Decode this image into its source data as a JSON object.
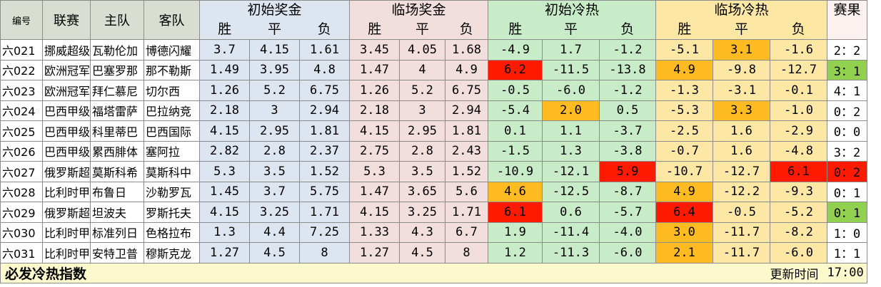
{
  "headers": {
    "id": "编号",
    "league": "联赛",
    "home": "主队",
    "away": "客队",
    "init_prize": "初始奖金",
    "live_prize": "临场奖金",
    "init_heat": "初始冷热",
    "live_heat": "临场冷热",
    "result": "赛果",
    "win": "胜",
    "draw": "平",
    "lose": "负"
  },
  "colors": {
    "blue_bg": "#dde6f0",
    "pink_bg": "#f3dede",
    "green_bg": "#c7ecc7",
    "yellow_bg": "#fde7a4",
    "red_highlight": "#ff1a00",
    "orange_highlight": "#ffbb22",
    "green_highlight": "#92d050",
    "footer_bg": "#fcfacd"
  },
  "rows": [
    {
      "id": "六021",
      "league": "挪威超级",
      "home": "瓦勒伦加",
      "away": "博德闪耀",
      "init": [
        "3.7",
        "4.15",
        "1.61"
      ],
      "live": [
        "3.45",
        "4.05",
        "1.68"
      ],
      "ih": [
        "-4.9",
        "1.7",
        "-1.2"
      ],
      "lh": [
        "-5.1",
        "3.1",
        "-1.6"
      ],
      "result": "2：2"
    },
    {
      "id": "六022",
      "league": "欧洲冠军",
      "home": "巴塞罗那",
      "away": "那不勒斯",
      "init": [
        "1.49",
        "3.95",
        "4.8"
      ],
      "live": [
        "1.47",
        "4",
        "4.9"
      ],
      "ih": [
        "6.2",
        "-11.5",
        "-13.8"
      ],
      "lh": [
        "4.9",
        "-9.8",
        "-12.7"
      ],
      "result": "3：1"
    },
    {
      "id": "六023",
      "league": "欧洲冠军",
      "home": "拜仁慕尼",
      "away": "切尔西",
      "init": [
        "1.26",
        "5.2",
        "6.75"
      ],
      "live": [
        "1.26",
        "5.2",
        "6.75"
      ],
      "ih": [
        "-0.5",
        "-6.0",
        "-1.2"
      ],
      "lh": [
        "-1.3",
        "-3.1",
        "-0.1"
      ],
      "result": "4：1"
    },
    {
      "id": "六024",
      "league": "巴西甲级",
      "home": "福塔雷萨",
      "away": "巴拉纳竞",
      "init": [
        "2.18",
        "3",
        "2.94"
      ],
      "live": [
        "2.18",
        "3",
        "2.94"
      ],
      "ih": [
        "-5.4",
        "2.0",
        "0.5"
      ],
      "lh": [
        "-5.3",
        "3.3",
        "-1.0"
      ],
      "result": "0：2"
    },
    {
      "id": "六025",
      "league": "巴西甲级",
      "home": "科里蒂巴",
      "away": "巴西国际",
      "init": [
        "4.15",
        "2.95",
        "1.81"
      ],
      "live": [
        "4.15",
        "2.95",
        "1.81"
      ],
      "ih": [
        "0.1",
        "1.1",
        "-3.7"
      ],
      "lh": [
        "-2.5",
        "1.6",
        "-2.9"
      ],
      "result": "0：0"
    },
    {
      "id": "六026",
      "league": "巴西甲级",
      "home": "累西腓体",
      "away": "塞阿拉",
      "init": [
        "2.82",
        "2.8",
        "2.37"
      ],
      "live": [
        "2.75",
        "2.8",
        "2.43"
      ],
      "ih": [
        "-1.5",
        "1.3",
        "-3.8"
      ],
      "lh": [
        "-0.7",
        "1.6",
        "-4.8"
      ],
      "result": "3：2"
    },
    {
      "id": "六027",
      "league": "俄罗斯超",
      "home": "莫斯科希",
      "away": "莫斯科中",
      "init": [
        "5.3",
        "3.5",
        "1.52"
      ],
      "live": [
        "5.3",
        "3.5",
        "1.52"
      ],
      "ih": [
        "-10.9",
        "-12.1",
        "5.9"
      ],
      "lh": [
        "-10.7",
        "-12.7",
        "6.1"
      ],
      "result": "0：2"
    },
    {
      "id": "六028",
      "league": "比利时甲",
      "home": "布鲁日",
      "away": "沙勒罗瓦",
      "init": [
        "1.45",
        "3.7",
        "5.75"
      ],
      "live": [
        "1.47",
        "3.65",
        "5.6"
      ],
      "ih": [
        "4.6",
        "-12.5",
        "-8.7"
      ],
      "lh": [
        "4.9",
        "-12.2",
        "-9.3"
      ],
      "result": "0：1"
    },
    {
      "id": "六029",
      "league": "俄罗斯超",
      "home": "坦波夫",
      "away": "罗斯托夫",
      "init": [
        "4.15",
        "3.25",
        "1.71"
      ],
      "live": [
        "4.15",
        "3.25",
        "1.71"
      ],
      "ih": [
        "6.1",
        "0.6",
        "-5.7"
      ],
      "lh": [
        "6.4",
        "-0.5",
        "-5.2"
      ],
      "result": "0：1"
    },
    {
      "id": "六030",
      "league": "比利时甲",
      "home": "标准列日",
      "away": "色格拉布",
      "init": [
        "1.3",
        "4.4",
        "7.25"
      ],
      "live": [
        "1.33",
        "4.3",
        "6.7"
      ],
      "ih": [
        "1.9",
        "-11.4",
        "-4.0"
      ],
      "lh": [
        "3.0",
        "-11.7",
        "-8.2"
      ],
      "result": "1：0"
    },
    {
      "id": "六031",
      "league": "比利时甲",
      "home": "安特卫普",
      "away": "穆斯克龙",
      "init": [
        "1.27",
        "4.5",
        "8"
      ],
      "live": [
        "1.27",
        "4.5",
        "8"
      ],
      "ih": [
        "1.2",
        "-11.3",
        "-6.0"
      ],
      "lh": [
        "2.1",
        "-11.7",
        "-6.0"
      ],
      "result": "1：1"
    }
  ],
  "highlights": {
    "ih": [
      null,
      "red:0",
      null,
      "orange:1",
      null,
      null,
      "red:2",
      "orange:0",
      "red:0",
      null,
      null
    ],
    "lh": [
      "orange:1",
      "orange:0",
      null,
      "orange:1",
      null,
      null,
      "red:2",
      "orange:0",
      "red:0",
      "orange:0",
      "orange:0"
    ],
    "result": [
      null,
      "green",
      null,
      null,
      null,
      null,
      "red",
      null,
      "green",
      null,
      null
    ]
  },
  "footer": {
    "title": "必发冷热指数",
    "update_label": "更新时间",
    "update_time": "17:00"
  }
}
